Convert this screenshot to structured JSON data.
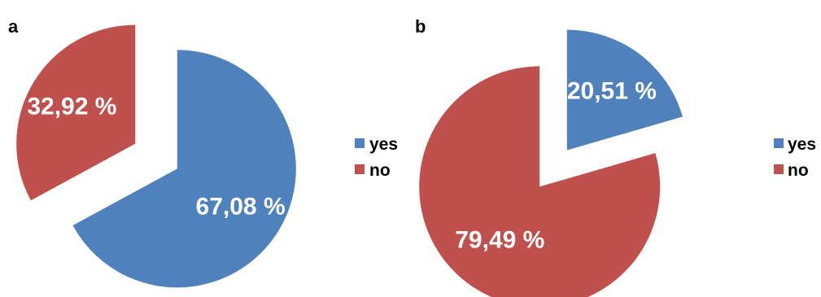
{
  "chart_data": [
    {
      "type": "pie",
      "panel_label": "a",
      "slices": [
        {
          "label": "yes",
          "value": 67.08,
          "value_text": "67,08 %",
          "color": "#4f81bd"
        },
        {
          "label": "no",
          "value": 32.92,
          "value_text": "32,92 %",
          "color": "#c0504d"
        }
      ],
      "exploded": true,
      "legend": {
        "position": "right",
        "entries": [
          "yes",
          "no"
        ]
      }
    },
    {
      "type": "pie",
      "panel_label": "b",
      "slices": [
        {
          "label": "yes",
          "value": 20.51,
          "value_text": "20,51 %",
          "color": "#4f81bd"
        },
        {
          "label": "no",
          "value": 79.49,
          "value_text": "79,49 %",
          "color": "#c0504d"
        }
      ],
      "exploded": true,
      "legend": {
        "position": "right",
        "entries": [
          "yes",
          "no"
        ]
      }
    }
  ]
}
